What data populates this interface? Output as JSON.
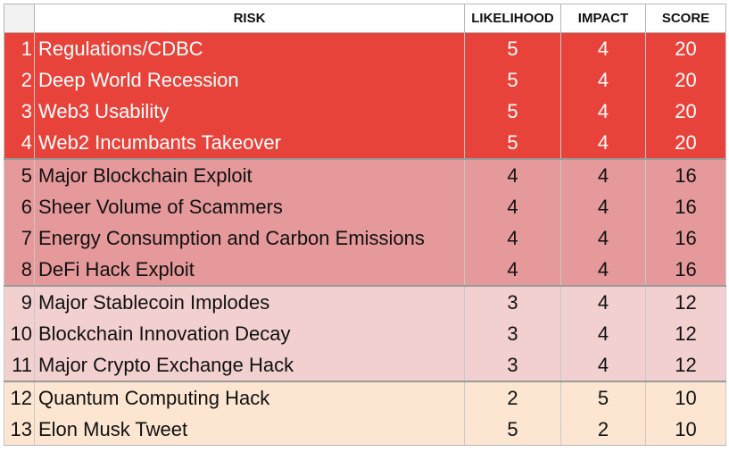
{
  "header": {
    "num": "",
    "risk": "RISK",
    "likelihood": "LIKELIHOOD",
    "impact": "IMPACT",
    "score": "SCORE"
  },
  "tiers": [
    {
      "name": "critical",
      "bg": "#e8433b",
      "text": "#ffffff"
    },
    {
      "name": "high",
      "bg": "#e6999b",
      "text": "#111111"
    },
    {
      "name": "medium",
      "bg": "#f3d0d0",
      "text": "#111111"
    },
    {
      "name": "low",
      "bg": "#fce6d2",
      "text": "#111111"
    }
  ],
  "rows": [
    {
      "num": "1",
      "risk": "Regulations/CDBC",
      "likelihood": "5",
      "impact": "4",
      "score": "20",
      "tier": 0
    },
    {
      "num": "2",
      "risk": "Deep World Recession",
      "likelihood": "5",
      "impact": "4",
      "score": "20",
      "tier": 0
    },
    {
      "num": "3",
      "risk": "Web3 Usability",
      "likelihood": "5",
      "impact": "4",
      "score": "20",
      "tier": 0
    },
    {
      "num": "4",
      "risk": "Web2 Incumbants Takeover",
      "likelihood": "5",
      "impact": "4",
      "score": "20",
      "tier": 0
    },
    {
      "num": "5",
      "risk": "Major Blockchain Exploit",
      "likelihood": "4",
      "impact": "4",
      "score": "16",
      "tier": 1
    },
    {
      "num": "6",
      "risk": "Sheer Volume of Scammers",
      "likelihood": "4",
      "impact": "4",
      "score": "16",
      "tier": 1
    },
    {
      "num": "7",
      "risk": "Energy Consumption and Carbon Emissions",
      "likelihood": "4",
      "impact": "4",
      "score": "16",
      "tier": 1
    },
    {
      "num": "8",
      "risk": "DeFi Hack Exploit",
      "likelihood": "4",
      "impact": "4",
      "score": "16",
      "tier": 1
    },
    {
      "num": "9",
      "risk": "Major Stablecoin Implodes",
      "likelihood": "3",
      "impact": "4",
      "score": "12",
      "tier": 2
    },
    {
      "num": "10",
      "risk": "Blockchain Innovation Decay",
      "likelihood": "3",
      "impact": "4",
      "score": "12",
      "tier": 2
    },
    {
      "num": "11",
      "risk": "Major Crypto Exchange Hack",
      "likelihood": "3",
      "impact": "4",
      "score": "12",
      "tier": 2
    },
    {
      "num": "12",
      "risk": "Quantum Computing Hack",
      "likelihood": "2",
      "impact": "5",
      "score": "10",
      "tier": 3
    },
    {
      "num": "13",
      "risk": "Elon Musk Tweet",
      "likelihood": "5",
      "impact": "2",
      "score": "10",
      "tier": 3
    }
  ]
}
